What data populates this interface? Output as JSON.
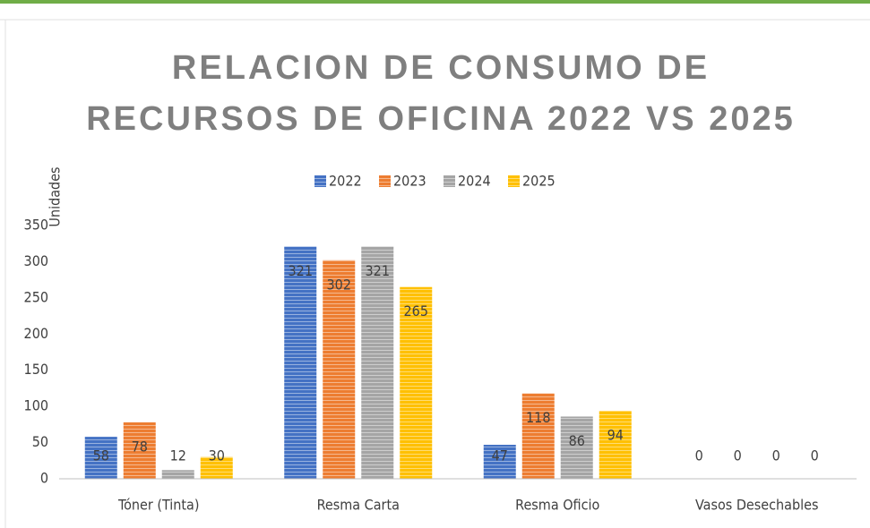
{
  "chart_data": {
    "type": "bar",
    "title": [
      "RELACION DE CONSUMO DE",
      "RECURSOS DE OFICINA 2022 VS 2025"
    ],
    "y_label": "Unidades",
    "categories": [
      "Tóner (Tinta)",
      "Resma Carta",
      "Resma Oficio",
      "Vasos Desechables"
    ],
    "series": [
      {
        "name": "2022",
        "color": "#4472c4",
        "values": [
          58,
          321,
          47,
          0
        ]
      },
      {
        "name": "2023",
        "color": "#ed7d31",
        "values": [
          78,
          302,
          118,
          0
        ]
      },
      {
        "name": "2024",
        "color": "#a5a5a5",
        "values": [
          12,
          321,
          86,
          0
        ]
      },
      {
        "name": "2025",
        "color": "#ffc000",
        "values": [
          30,
          265,
          94,
          0
        ]
      }
    ],
    "ylim": [
      0,
      350
    ],
    "yticks": [
      0,
      50,
      100,
      150,
      200,
      250,
      300,
      350
    ],
    "grid": false,
    "legend": "top"
  }
}
